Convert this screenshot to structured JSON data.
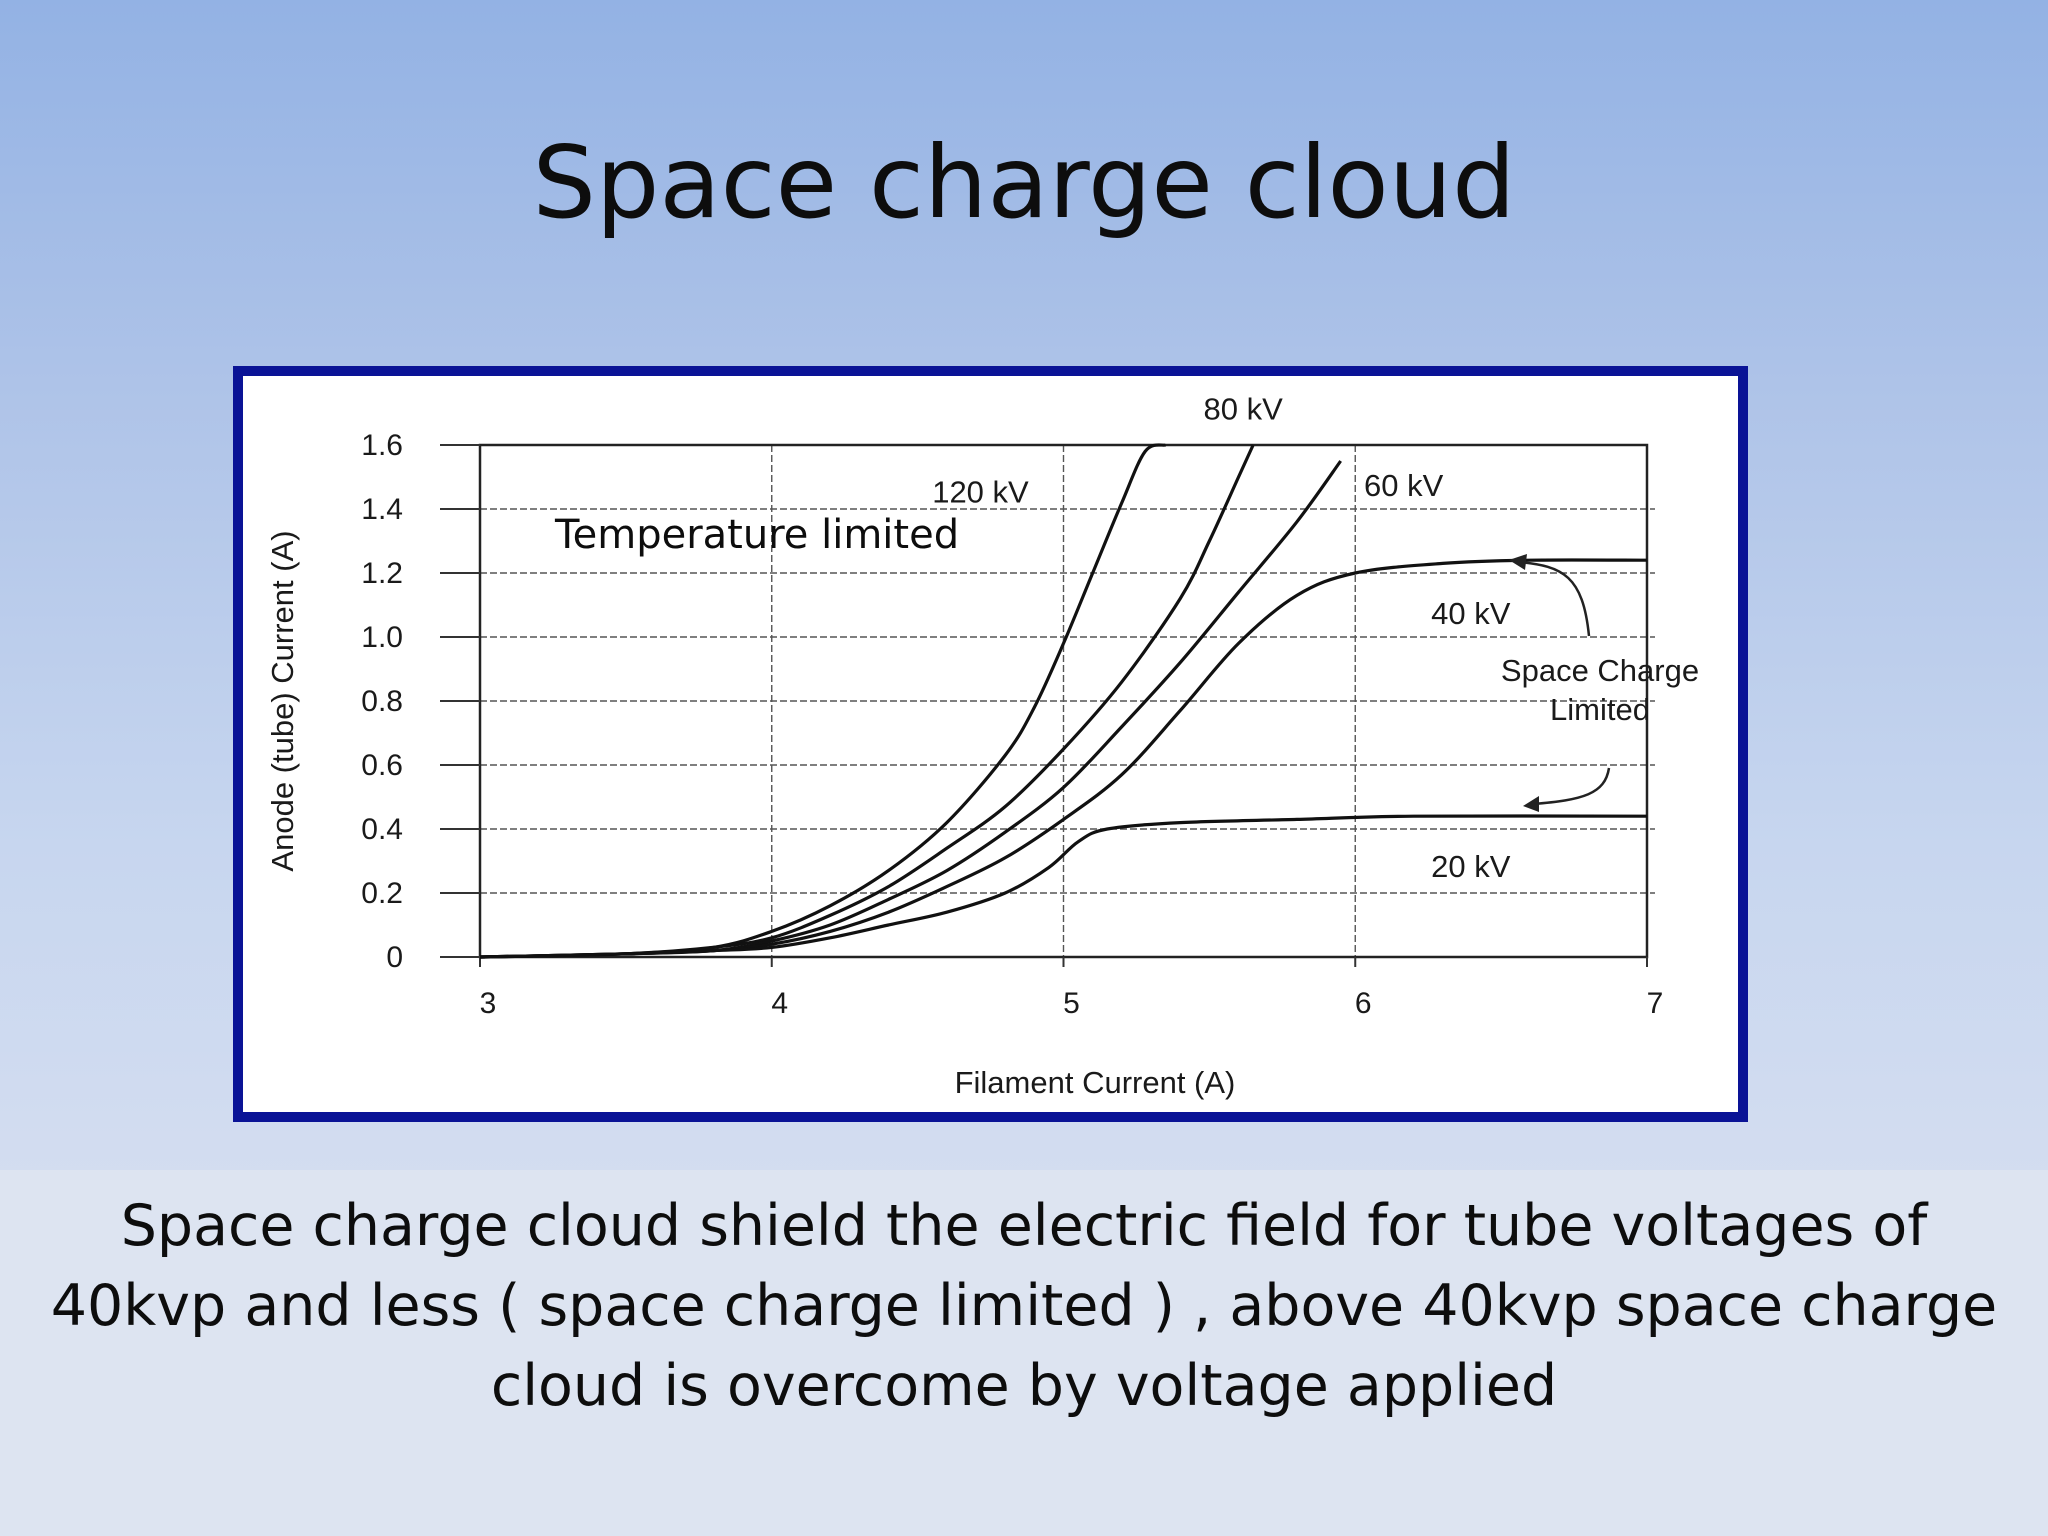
{
  "slide": {
    "title": "Space charge cloud",
    "caption": "Space charge cloud shield the electric field for tube voltages of 40kvp and less ( space charge limited ) , above 40kvp space charge cloud is overcome by voltage applied"
  },
  "colors": {
    "frame": "#0a1396",
    "curve": "#111111",
    "grid": "#444444"
  },
  "chart_data": {
    "type": "line",
    "xlabel": "Filament Current (A)",
    "ylabel": "Anode (tube) Current (A)",
    "xlim": [
      3,
      7
    ],
    "ylim": [
      0,
      1.6
    ],
    "xticks": [
      "3",
      "4",
      "5",
      "6",
      "7"
    ],
    "yticks": [
      "0",
      "0.2",
      "0.4",
      "0.6",
      "0.8",
      "1.0",
      "1.2",
      "1.4",
      "1.6"
    ],
    "grid": true,
    "series": [
      {
        "name": "120 kV",
        "x": [
          3.0,
          3.5,
          3.8,
          4.0,
          4.2,
          4.4,
          4.6,
          4.8,
          4.9,
          5.0,
          5.1,
          5.2,
          5.28,
          5.35
        ],
        "y": [
          0.0,
          0.01,
          0.03,
          0.08,
          0.16,
          0.27,
          0.42,
          0.63,
          0.78,
          0.98,
          1.2,
          1.42,
          1.58,
          1.6
        ]
      },
      {
        "name": "80 kV",
        "x": [
          3.0,
          3.5,
          3.8,
          4.0,
          4.2,
          4.4,
          4.6,
          4.8,
          5.0,
          5.2,
          5.4,
          5.5,
          5.6,
          5.65
        ],
        "y": [
          0.0,
          0.01,
          0.03,
          0.06,
          0.13,
          0.22,
          0.34,
          0.47,
          0.65,
          0.86,
          1.12,
          1.3,
          1.5,
          1.6
        ]
      },
      {
        "name": "60 kV",
        "x": [
          3.0,
          3.5,
          3.8,
          4.0,
          4.2,
          4.4,
          4.6,
          4.8,
          5.0,
          5.2,
          5.4,
          5.6,
          5.8,
          5.95
        ],
        "y": [
          0.0,
          0.01,
          0.02,
          0.05,
          0.1,
          0.18,
          0.27,
          0.39,
          0.53,
          0.72,
          0.92,
          1.14,
          1.36,
          1.55
        ]
      },
      {
        "name": "40 kV",
        "x": [
          3.0,
          3.5,
          3.8,
          4.0,
          4.2,
          4.4,
          4.6,
          4.8,
          5.0,
          5.2,
          5.4,
          5.6,
          5.8,
          6.0,
          6.3,
          6.6,
          7.0
        ],
        "y": [
          0.0,
          0.01,
          0.02,
          0.04,
          0.08,
          0.14,
          0.22,
          0.31,
          0.43,
          0.57,
          0.77,
          0.98,
          1.13,
          1.2,
          1.23,
          1.24,
          1.24
        ]
      },
      {
        "name": "20 kV",
        "x": [
          3.0,
          3.5,
          3.8,
          4.0,
          4.2,
          4.4,
          4.6,
          4.8,
          4.95,
          5.05,
          5.15,
          5.4,
          5.8,
          6.2,
          7.0
        ],
        "y": [
          0.0,
          0.01,
          0.02,
          0.03,
          0.06,
          0.1,
          0.14,
          0.2,
          0.28,
          0.36,
          0.4,
          0.42,
          0.43,
          0.44,
          0.44
        ]
      }
    ],
    "annotations": {
      "temperature_limited": "Temperature limited",
      "space_charge_line1": "Space Charge",
      "space_charge_line2": "Limited"
    }
  }
}
